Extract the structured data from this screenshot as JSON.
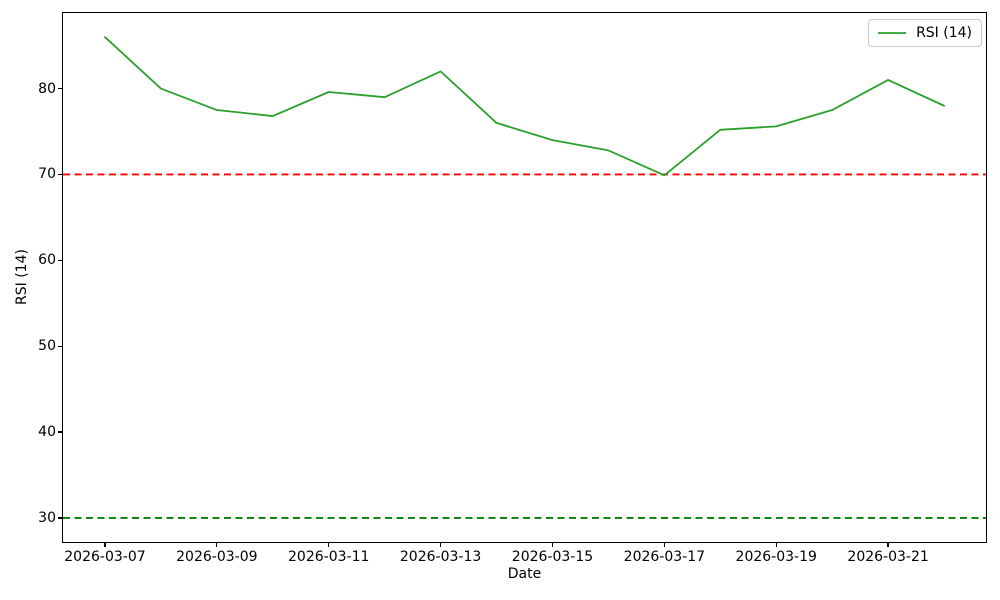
{
  "figure": {
    "background": "#ffffff"
  },
  "chart_data": {
    "type": "line",
    "title": "",
    "xlabel": "Date",
    "ylabel": "RSI (14)",
    "grid": false,
    "x": [
      "2026-03-07",
      "2026-03-08",
      "2026-03-09",
      "2026-03-10",
      "2026-03-11",
      "2026-03-12",
      "2026-03-13",
      "2026-03-14",
      "2026-03-15",
      "2026-03-16",
      "2026-03-17",
      "2026-03-18",
      "2026-03-19",
      "2026-03-20",
      "2026-03-21",
      "2026-03-22"
    ],
    "series": [
      {
        "name": "RSI (14)",
        "color": "#2ca02c",
        "line_width": 1.8,
        "values": [
          86.0,
          80.0,
          77.5,
          76.8,
          79.6,
          79.0,
          82.0,
          76.0,
          74.0,
          72.8,
          69.9,
          75.2,
          75.6,
          77.5,
          81.0,
          78.0
        ]
      }
    ],
    "reference_lines": [
      {
        "value": 70,
        "color": "#ff0000",
        "style": "dashed"
      },
      {
        "value": 30,
        "color": "#008000",
        "style": "dashed"
      }
    ],
    "x_ticks": [
      "2026-03-07",
      "2026-03-09",
      "2026-03-11",
      "2026-03-13",
      "2026-03-15",
      "2026-03-17",
      "2026-03-19",
      "2026-03-21"
    ],
    "y_ticks": [
      30,
      40,
      50,
      60,
      70,
      80
    ],
    "ylim": [
      27.2,
      88.8
    ],
    "xlim_index": [
      -0.75,
      15.75
    ],
    "legend": {
      "position": "upper-right",
      "entries": [
        {
          "label": "RSI (14)",
          "color": "#2ca02c"
        }
      ]
    }
  }
}
